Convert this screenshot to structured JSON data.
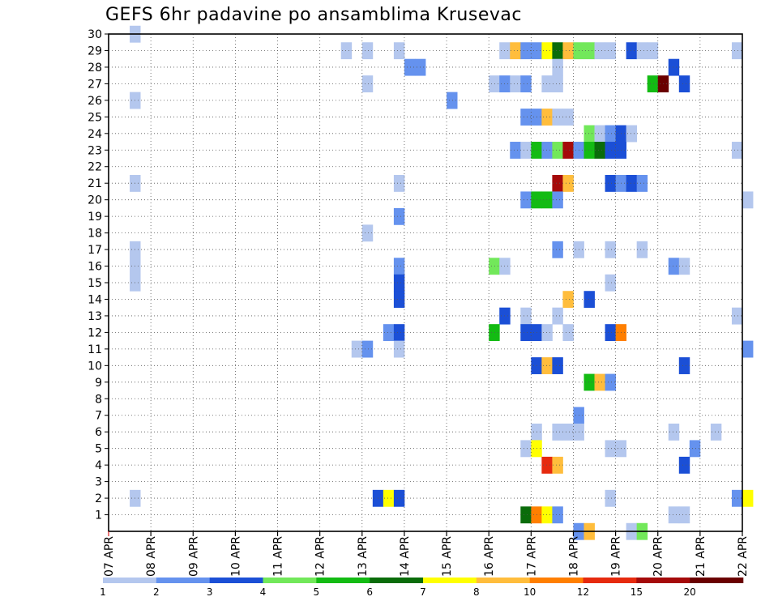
{
  "chart_data": {
    "type": "heatmap",
    "title": "GEFS 6hr padavine po ansamblima Krusevac",
    "x_tick_labels": [
      "07 APR",
      "08 APR",
      "09 APR",
      "10 APR",
      "11 APR",
      "12 APR",
      "13 APR",
      "14 APR",
      "15 APR",
      "16 APR",
      "17 APR",
      "18 APR",
      "19 APR",
      "20 APR",
      "21 APR",
      "22 APR"
    ],
    "y_tick_labels": [
      "1",
      "2",
      "3",
      "4",
      "5",
      "6",
      "7",
      "8",
      "9",
      "10",
      "11",
      "12",
      "13",
      "14",
      "15",
      "16",
      "17",
      "18",
      "19",
      "20",
      "21",
      "22",
      "23",
      "24",
      "25",
      "26",
      "27",
      "28",
      "29",
      "30"
    ],
    "ylim": [
      0,
      30
    ],
    "grid": true,
    "legend": {
      "placement": "bottom",
      "labels": [
        "1",
        "2",
        "3",
        "4",
        "5",
        "6",
        "7",
        "8",
        "10",
        "12",
        "15",
        "20"
      ],
      "colors": [
        "#b4c7ee",
        "#6592ee",
        "#1b4fd6",
        "#72e85a",
        "#13bb13",
        "#0a6c0a",
        "#ffff00",
        "#ffbd3c",
        "#ff7f00",
        "#e62a0e",
        "#a50a0a",
        "#6a0000"
      ]
    },
    "cells": [
      {
        "member": 30,
        "day": 0.5,
        "level": 1
      },
      {
        "member": 29,
        "day": 5.5,
        "level": 1
      },
      {
        "member": 29,
        "day": 6,
        "level": 1
      },
      {
        "member": 29,
        "day": 6.75,
        "level": 1
      },
      {
        "member": 29,
        "day": 9.25,
        "level": 1
      },
      {
        "member": 29,
        "day": 9.5,
        "level": 8
      },
      {
        "member": 29,
        "day": 9.75,
        "level": 2
      },
      {
        "member": 29,
        "day": 10,
        "level": 2
      },
      {
        "member": 29,
        "day": 10.25,
        "level": 7
      },
      {
        "member": 29,
        "day": 10.5,
        "level": 6
      },
      {
        "member": 29,
        "day": 10.75,
        "level": 8
      },
      {
        "member": 29,
        "day": 11,
        "level": 4
      },
      {
        "member": 29,
        "day": 11.25,
        "level": 4
      },
      {
        "member": 29,
        "day": 11.5,
        "level": 1
      },
      {
        "member": 29,
        "day": 11.75,
        "level": 1
      },
      {
        "member": 29,
        "day": 12.25,
        "level": 3
      },
      {
        "member": 29,
        "day": 12.5,
        "level": 1
      },
      {
        "member": 29,
        "day": 12.75,
        "level": 1
      },
      {
        "member": 29,
        "day": 14.75,
        "level": 1
      },
      {
        "member": 28,
        "day": 7,
        "level": 2
      },
      {
        "member": 28,
        "day": 7.25,
        "level": 2
      },
      {
        "member": 28,
        "day": 10.5,
        "level": 1
      },
      {
        "member": 28,
        "day": 13.25,
        "level": 3
      },
      {
        "member": 27,
        "day": 6,
        "level": 1
      },
      {
        "member": 27,
        "day": 9,
        "level": 1
      },
      {
        "member": 27,
        "day": 9.25,
        "level": 2
      },
      {
        "member": 27,
        "day": 9.5,
        "level": 1
      },
      {
        "member": 27,
        "day": 9.75,
        "level": 2
      },
      {
        "member": 27,
        "day": 10.25,
        "level": 1
      },
      {
        "member": 27,
        "day": 10.5,
        "level": 1
      },
      {
        "member": 27,
        "day": 12.75,
        "level": 5
      },
      {
        "member": 27,
        "day": 13,
        "level": 12
      },
      {
        "member": 27,
        "day": 13.5,
        "level": 3
      },
      {
        "member": 26,
        "day": 0.5,
        "level": 1
      },
      {
        "member": 26,
        "day": 8,
        "level": 2
      },
      {
        "member": 25,
        "day": 9.75,
        "level": 2
      },
      {
        "member": 25,
        "day": 10,
        "level": 2
      },
      {
        "member": 25,
        "day": 10.25,
        "level": 8
      },
      {
        "member": 25,
        "day": 10.5,
        "level": 1
      },
      {
        "member": 25,
        "day": 10.75,
        "level": 1
      },
      {
        "member": 24,
        "day": 11.25,
        "level": 4
      },
      {
        "member": 24,
        "day": 11.5,
        "level": 1
      },
      {
        "member": 24,
        "day": 11.75,
        "level": 2
      },
      {
        "member": 24,
        "day": 12,
        "level": 3
      },
      {
        "member": 24,
        "day": 12.25,
        "level": 1
      },
      {
        "member": 23,
        "day": 9.5,
        "level": 2
      },
      {
        "member": 23,
        "day": 9.75,
        "level": 1
      },
      {
        "member": 23,
        "day": 10,
        "level": 5
      },
      {
        "member": 23,
        "day": 10.25,
        "level": 2
      },
      {
        "member": 23,
        "day": 10.5,
        "level": 4
      },
      {
        "member": 23,
        "day": 10.75,
        "level": 11
      },
      {
        "member": 23,
        "day": 11,
        "level": 2
      },
      {
        "member": 23,
        "day": 11.25,
        "level": 5
      },
      {
        "member": 23,
        "day": 11.5,
        "level": 6
      },
      {
        "member": 23,
        "day": 11.75,
        "level": 3
      },
      {
        "member": 23,
        "day": 12,
        "level": 3
      },
      {
        "member": 23,
        "day": 14.75,
        "level": 1
      },
      {
        "member": 21,
        "day": 0.5,
        "level": 1
      },
      {
        "member": 21,
        "day": 6.75,
        "level": 1
      },
      {
        "member": 21,
        "day": 10.5,
        "level": 11
      },
      {
        "member": 21,
        "day": 10.75,
        "level": 8
      },
      {
        "member": 21,
        "day": 11.75,
        "level": 3
      },
      {
        "member": 21,
        "day": 12,
        "level": 2
      },
      {
        "member": 21,
        "day": 12.25,
        "level": 3
      },
      {
        "member": 21,
        "day": 12.5,
        "level": 2
      },
      {
        "member": 20,
        "day": 9.75,
        "level": 2
      },
      {
        "member": 20,
        "day": 10,
        "level": 5
      },
      {
        "member": 20,
        "day": 10.25,
        "level": 5
      },
      {
        "member": 20,
        "day": 10.5,
        "level": 2
      },
      {
        "member": 20,
        "day": 15,
        "level": 1
      },
      {
        "member": 19,
        "day": 6.75,
        "level": 2
      },
      {
        "member": 18,
        "day": 6,
        "level": 1
      },
      {
        "member": 17,
        "day": 0.5,
        "level": 1
      },
      {
        "member": 17,
        "day": 10.5,
        "level": 2
      },
      {
        "member": 17,
        "day": 11,
        "level": 1
      },
      {
        "member": 17,
        "day": 11.75,
        "level": 1
      },
      {
        "member": 17,
        "day": 12.5,
        "level": 1
      },
      {
        "member": 16,
        "day": 0.5,
        "level": 1
      },
      {
        "member": 16,
        "day": 6.75,
        "level": 2
      },
      {
        "member": 16,
        "day": 9,
        "level": 4
      },
      {
        "member": 16,
        "day": 9.25,
        "level": 1
      },
      {
        "member": 16,
        "day": 13.25,
        "level": 2
      },
      {
        "member": 16,
        "day": 13.5,
        "level": 1
      },
      {
        "member": 15,
        "day": 0.5,
        "level": 1
      },
      {
        "member": 15,
        "day": 6.75,
        "level": 3
      },
      {
        "member": 15,
        "day": 11.75,
        "level": 1
      },
      {
        "member": 14,
        "day": 6.75,
        "level": 3
      },
      {
        "member": 14,
        "day": 10.75,
        "level": 8
      },
      {
        "member": 14,
        "day": 11.25,
        "level": 3
      },
      {
        "member": 13,
        "day": 9.25,
        "level": 3
      },
      {
        "member": 13,
        "day": 9.75,
        "level": 1
      },
      {
        "member": 13,
        "day": 10.5,
        "level": 1
      },
      {
        "member": 13,
        "day": 14.75,
        "level": 1
      },
      {
        "member": 12,
        "day": 6.5,
        "level": 2
      },
      {
        "member": 12,
        "day": 6.75,
        "level": 3
      },
      {
        "member": 12,
        "day": 9,
        "level": 5
      },
      {
        "member": 12,
        "day": 9.75,
        "level": 3
      },
      {
        "member": 12,
        "day": 10,
        "level": 3
      },
      {
        "member": 12,
        "day": 10.25,
        "level": 1
      },
      {
        "member": 12,
        "day": 10.75,
        "level": 1
      },
      {
        "member": 12,
        "day": 11.75,
        "level": 3
      },
      {
        "member": 12,
        "day": 12,
        "level": 9
      },
      {
        "member": 11,
        "day": 5.75,
        "level": 1
      },
      {
        "member": 11,
        "day": 6,
        "level": 2
      },
      {
        "member": 11,
        "day": 6.75,
        "level": 1
      },
      {
        "member": 11,
        "day": 15,
        "level": 2
      },
      {
        "member": 10,
        "day": 10,
        "level": 3
      },
      {
        "member": 10,
        "day": 10.25,
        "level": 8
      },
      {
        "member": 10,
        "day": 10.5,
        "level": 3
      },
      {
        "member": 10,
        "day": 13.5,
        "level": 3
      },
      {
        "member": 9,
        "day": 11.25,
        "level": 5
      },
      {
        "member": 9,
        "day": 11.5,
        "level": 8
      },
      {
        "member": 9,
        "day": 11.75,
        "level": 2
      },
      {
        "member": 7,
        "day": 11,
        "level": 2
      },
      {
        "member": 6,
        "day": 10,
        "level": 1
      },
      {
        "member": 6,
        "day": 10.5,
        "level": 1
      },
      {
        "member": 6,
        "day": 10.75,
        "level": 1
      },
      {
        "member": 6,
        "day": 11,
        "level": 1
      },
      {
        "member": 6,
        "day": 13.25,
        "level": 1
      },
      {
        "member": 6,
        "day": 14.25,
        "level": 1
      },
      {
        "member": 5,
        "day": 9.75,
        "level": 1
      },
      {
        "member": 5,
        "day": 10,
        "level": 7
      },
      {
        "member": 5,
        "day": 11.75,
        "level": 1
      },
      {
        "member": 5,
        "day": 12,
        "level": 1
      },
      {
        "member": 5,
        "day": 13.75,
        "level": 2
      },
      {
        "member": 4,
        "day": 10.25,
        "level": 10
      },
      {
        "member": 4,
        "day": 10.5,
        "level": 8
      },
      {
        "member": 4,
        "day": 13.5,
        "level": 3
      },
      {
        "member": 2,
        "day": 0.5,
        "level": 1
      },
      {
        "member": 2,
        "day": 6.25,
        "level": 3
      },
      {
        "member": 2,
        "day": 6.5,
        "level": 7
      },
      {
        "member": 2,
        "day": 6.75,
        "level": 3
      },
      {
        "member": 2,
        "day": 11.75,
        "level": 1
      },
      {
        "member": 2,
        "day": 14.75,
        "level": 2
      },
      {
        "member": 2,
        "day": 15,
        "level": 7
      },
      {
        "member": 1,
        "day": 9.75,
        "level": 6
      },
      {
        "member": 1,
        "day": 10,
        "level": 9
      },
      {
        "member": 1,
        "day": 10.25,
        "level": 7
      },
      {
        "member": 1,
        "day": 10.5,
        "level": 2
      },
      {
        "member": 1,
        "day": 13.25,
        "level": 1
      },
      {
        "member": 1,
        "day": 13.5,
        "level": 1
      },
      {
        "member": 0,
        "day": 11,
        "level": 2
      },
      {
        "member": 0,
        "day": 11.25,
        "level": 8
      },
      {
        "member": 0,
        "day": 12.25,
        "level": 1
      },
      {
        "member": 0,
        "day": 12.5,
        "level": 4
      }
    ]
  }
}
